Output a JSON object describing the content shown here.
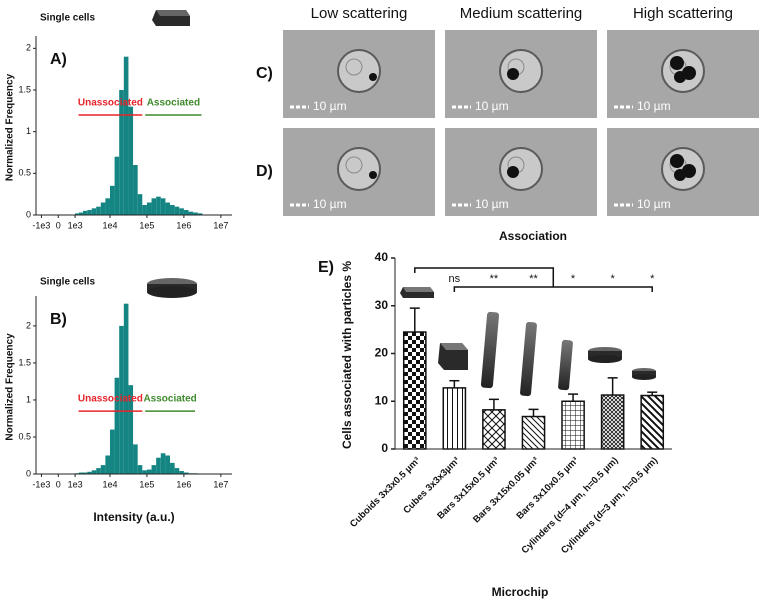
{
  "chart_data": [
    {
      "type": "histogram",
      "panel_label": "A)",
      "title": "Single cells",
      "ylabel": "Normalized Frequency",
      "xscale": "biexponential",
      "color": "#148582",
      "bins": [
        1000,
        1334,
        1778,
        2371,
        3162,
        4217,
        5623,
        7499,
        10000,
        13335,
        17783,
        23714,
        31623,
        42170,
        56234,
        74989,
        100000,
        133352,
        177828,
        237137,
        316228,
        421697,
        562341,
        749894,
        1000000,
        1333521,
        1778279,
        2371374,
        3162278
      ],
      "values": [
        0.02,
        0.03,
        0.05,
        0.06,
        0.08,
        0.1,
        0.15,
        0.2,
        0.35,
        0.7,
        1.5,
        1.9,
        1.3,
        0.6,
        0.25,
        0.12,
        0.15,
        0.2,
        0.22,
        0.2,
        0.15,
        0.12,
        0.1,
        0.08,
        0.06,
        0.04,
        0.03,
        0.02
      ],
      "xlim": [
        -1500,
        20000000
      ],
      "xticks": [
        {
          "value": -1000,
          "label": "-1e3"
        },
        0,
        {
          "value": 1000,
          "label": "1e3"
        },
        {
          "value": 10000,
          "label": "1e4"
        },
        {
          "value": 100000,
          "label": "1e5"
        },
        {
          "value": 1000000,
          "label": "1e6"
        },
        {
          "value": 10000000,
          "label": "1e7"
        }
      ],
      "ylim": [
        0,
        2.1
      ],
      "yticks": [
        0,
        0.5,
        1,
        1.5,
        2
      ],
      "gates": [
        {
          "label": "Unassociated",
          "x_start": 1300,
          "x_end": 75000,
          "y": 1.2,
          "color": "#e8242b"
        },
        {
          "label": "Associated",
          "x_start": 90000,
          "x_end": 3000000,
          "y": 1.2,
          "color": "#3f8a2c"
        }
      ]
    },
    {
      "type": "histogram",
      "panel_label": "B)",
      "title": "Single cells",
      "ylabel": "Normalized Frequency",
      "xlabel": "Intensity (a.u.)",
      "xscale": "biexponential",
      "color": "#148582",
      "bins": [
        1000,
        1334,
        1778,
        2371,
        3162,
        4217,
        5623,
        7499,
        10000,
        13335,
        17783,
        23714,
        31623,
        42170,
        56234,
        74989,
        100000,
        133352,
        177828,
        237137,
        316228,
        421697,
        562341,
        749894,
        1000000,
        1333521,
        1778279,
        2371374,
        3162278
      ],
      "values": [
        0.01,
        0.02,
        0.02,
        0.03,
        0.05,
        0.08,
        0.12,
        0.25,
        0.6,
        1.3,
        2.0,
        2.3,
        1.2,
        0.4,
        0.12,
        0.05,
        0.06,
        0.12,
        0.22,
        0.28,
        0.25,
        0.15,
        0.08,
        0.04,
        0.02,
        0.01,
        0.01,
        0.005
      ],
      "xlim": [
        -1500,
        20000000
      ],
      "xticks": [
        {
          "value": -1000,
          "label": "-1e3"
        },
        0,
        {
          "value": 1000,
          "label": "1e3"
        },
        {
          "value": 10000,
          "label": "1e4"
        },
        {
          "value": 100000,
          "label": "1e5"
        },
        {
          "value": 1000000,
          "label": "1e6"
        },
        {
          "value": 10000000,
          "label": "1e7"
        }
      ],
      "ylim": [
        0,
        2.35
      ],
      "yticks": [
        0,
        0.5,
        1,
        1.5,
        2
      ],
      "gates": [
        {
          "label": "Unassociated",
          "x_start": 1300,
          "x_end": 75000,
          "y": 0.85,
          "color": "#e8242b"
        },
        {
          "label": "Associated",
          "x_start": 90000,
          "x_end": 2000000,
          "y": 0.85,
          "color": "#3f8a2c"
        }
      ]
    },
    {
      "type": "bar",
      "panel_label": "E)",
      "title": "Association",
      "ylabel": "Cells associated with particles %",
      "xlabel": "Microchip",
      "categories": [
        "Cuboids 3x3x0.5 µm³",
        "Cubes 3x3x3µm³",
        "Bars 3x15x0.5 µm³",
        "Bars 3x15x0.05 µm³",
        "Bars 3x10x0.5 µm³",
        "Cylinders (d=4 µm, h=0.5 µm)",
        "Cylinders (d=3 µm, h=0.5 µm)"
      ],
      "values": [
        24.5,
        12.8,
        8.2,
        6.8,
        10.0,
        11.3,
        11.2
      ],
      "errors": [
        5.0,
        1.5,
        2.2,
        1.5,
        1.5,
        3.6,
        0.7
      ],
      "patterns": [
        "checker",
        "vertical",
        "cross",
        "diagonal",
        "grid",
        "dense",
        "backdiag"
      ],
      "significance": [
        null,
        "ns",
        "**",
        "**",
        "*",
        "*",
        "*"
      ],
      "ylim": [
        0,
        40
      ],
      "yticks": [
        0,
        10,
        20,
        30,
        40
      ]
    }
  ],
  "images": {
    "columns": [
      "Low scattering",
      "Medium scattering",
      "High scattering"
    ],
    "rows": [
      "C)",
      "D)"
    ],
    "scale_labels": [
      "10 µm",
      "10 µm",
      "10 µm",
      "10 µm",
      "10 µm",
      "10 µm"
    ]
  }
}
